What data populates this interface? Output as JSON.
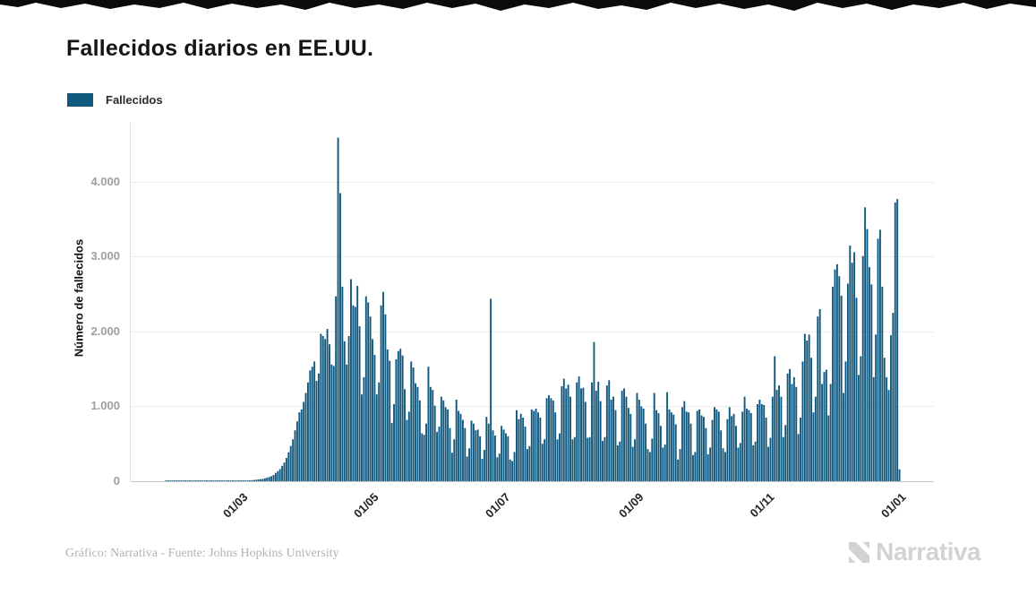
{
  "page": {
    "title": "Fallecidos diarios en EE.UU.",
    "footer_credit": "Gráfico: Narrativa - Fuente: Johns Hopkins University",
    "brand": "Narrativa"
  },
  "legend": {
    "label": "Fallecidos",
    "color": "#10587E"
  },
  "colors": {
    "bar": "#10587E",
    "grid": "#ececec",
    "axis_baseline": "#c9c9c9",
    "ytick_text": "#9e9e9e",
    "xtick_text": "#232323",
    "credit_text": "#b3b3b3",
    "brand_text": "#d2d2d2",
    "torn_strip": "#0b0b0b"
  },
  "chart_data": {
    "type": "bar",
    "title": "Fallecidos diarios en EE.UU.",
    "series_name": "Fallecidos",
    "xlabel": "",
    "ylabel": "Número de fallecidos",
    "ylim": [
      0,
      4790
    ],
    "grid": "horizontal",
    "legend_position": "top-left",
    "bar_color": "#10587E",
    "yticks": [
      {
        "value": 0,
        "label": "0"
      },
      {
        "value": 1000,
        "label": "1.000"
      },
      {
        "value": 2000,
        "label": "2.000"
      },
      {
        "value": 3000,
        "label": "3.000"
      },
      {
        "value": 4000,
        "label": "4.000"
      }
    ],
    "x_unit": "day",
    "xticks": [
      {
        "index": 51,
        "label": "01/03"
      },
      {
        "index": 112,
        "label": "01/05"
      },
      {
        "index": 173,
        "label": "01/07"
      },
      {
        "index": 235,
        "label": "01/09"
      },
      {
        "index": 296,
        "label": "01/11"
      },
      {
        "index": 357,
        "label": "01/01"
      }
    ],
    "values": [
      0,
      0,
      0,
      0,
      0,
      0,
      0,
      0,
      0,
      0,
      0,
      0,
      0,
      0,
      0,
      0,
      1,
      1,
      1,
      1,
      1,
      1,
      1,
      1,
      1,
      1,
      1,
      1,
      1,
      1,
      1,
      1,
      1,
      1,
      1,
      1,
      1,
      1,
      1,
      1,
      1,
      1,
      1,
      2,
      2,
      2,
      3,
      2,
      3,
      4,
      5,
      4,
      6,
      7,
      9,
      11,
      14,
      17,
      21,
      24,
      28,
      31,
      39,
      49,
      57,
      67,
      84,
      111,
      135,
      162,
      205,
      250,
      312,
      387,
      470,
      560,
      680,
      800,
      920,
      960,
      1060,
      1180,
      1320,
      1480,
      1530,
      1600,
      1340,
      1440,
      1970,
      1940,
      1900,
      2035,
      1830,
      1560,
      1540,
      2470,
      4591,
      3850,
      2600,
      1870,
      1560,
      1940,
      2700,
      2350,
      2330,
      2610,
      2070,
      1160,
      1390,
      2470,
      2390,
      2200,
      1900,
      1690,
      1160,
      1320,
      2350,
      2530,
      2230,
      1760,
      1610,
      780,
      1030,
      1630,
      1740,
      1770,
      1680,
      1230,
      820,
      930,
      1600,
      1520,
      1310,
      1260,
      1080,
      640,
      620,
      770,
      1530,
      1260,
      1220,
      1010,
      660,
      730,
      1130,
      1080,
      990,
      960,
      710,
      380,
      560,
      1090,
      940,
      900,
      820,
      710,
      330,
      440,
      810,
      770,
      680,
      690,
      600,
      300,
      420,
      860,
      770,
      2437,
      680,
      610,
      320,
      370,
      740,
      690,
      640,
      600,
      290,
      270,
      390,
      950,
      830,
      900,
      850,
      730,
      430,
      470,
      960,
      940,
      970,
      920,
      850,
      500,
      560,
      1110,
      1150,
      1110,
      1080,
      920,
      560,
      640,
      1270,
      1370,
      1240,
      1290,
      1130,
      560,
      590,
      1320,
      1400,
      1240,
      1250,
      1060,
      580,
      590,
      1320,
      1860,
      1210,
      1330,
      1070,
      540,
      590,
      1280,
      1350,
      1090,
      1130,
      950,
      480,
      530,
      1210,
      1240,
      1130,
      980,
      900,
      460,
      560,
      1180,
      1090,
      1000,
      970,
      770,
      430,
      390,
      570,
      1180,
      950,
      910,
      740,
      450,
      490,
      1190,
      960,
      920,
      890,
      760,
      290,
      430,
      990,
      1070,
      930,
      920,
      770,
      350,
      390,
      940,
      960,
      880,
      860,
      710,
      360,
      450,
      820,
      990,
      960,
      930,
      680,
      440,
      390,
      830,
      990,
      870,
      900,
      740,
      450,
      510,
      930,
      1130,
      970,
      950,
      910,
      480,
      530,
      1030,
      1090,
      1030,
      1020,
      850,
      460,
      580,
      1130,
      1670,
      1220,
      1280,
      1130,
      590,
      750,
      1440,
      1500,
      1300,
      1390,
      1260,
      630,
      850,
      1600,
      1970,
      1880,
      1960,
      1650,
      920,
      1130,
      2200,
      2300,
      1300,
      1460,
      1490,
      880,
      1300,
      2600,
      2830,
      2900,
      2740,
      2480,
      1180,
      1600,
      2640,
      3150,
      2920,
      3060,
      2450,
      1420,
      1670,
      3010,
      3660,
      3370,
      2860,
      2630,
      1390,
      1960,
      3240,
      3360,
      2600,
      1650,
      1390,
      1220,
      1950,
      2250,
      3725,
      3770,
      160
    ]
  }
}
